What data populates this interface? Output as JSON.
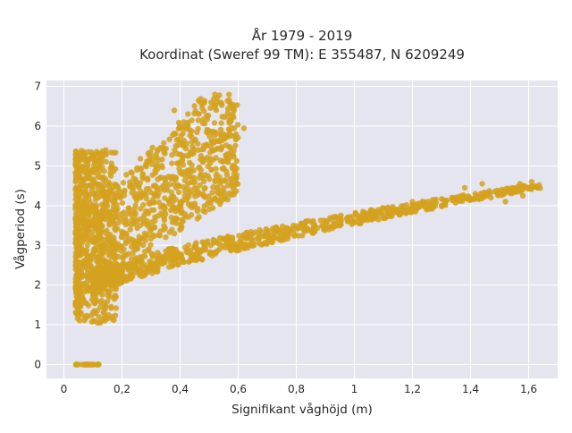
{
  "chart_data": {
    "type": "scatter",
    "title_lines": [
      "År 1979 - 2019",
      "Koordinat (Sweref 99 TM): E 355487, N 6209249"
    ],
    "xlabel": "Signifikant våghöjd (m)",
    "ylabel": "Vågperiod (s)",
    "xlim": [
      -0.06,
      1.7
    ],
    "ylim": [
      -0.35,
      7.15
    ],
    "xticks": [
      0,
      0.2,
      0.4,
      0.6,
      0.8,
      1,
      1.2,
      1.4,
      1.6
    ],
    "xtick_labels": [
      "0",
      "0,2",
      "0,4",
      "0,6",
      "0,8",
      "1",
      "1,2",
      "1,4",
      "1,6"
    ],
    "yticks": [
      0,
      1,
      2,
      3,
      4,
      5,
      6,
      7
    ],
    "ytick_labels": [
      "0",
      "1",
      "2",
      "3",
      "4",
      "5",
      "6",
      "7"
    ],
    "grid": true,
    "marker_color": "#d4a21f",
    "background_color": "#e5e5ef",
    "clusters": [
      {
        "shape": "zero-period",
        "x_range": [
          0.04,
          0.12
        ],
        "y": 0.0
      },
      {
        "shape": "low-height-column",
        "x_range": [
          0.04,
          0.18
        ],
        "y_range": [
          1.05,
          5.4
        ]
      },
      {
        "shape": "swell-band",
        "x_range": [
          0.1,
          0.6
        ],
        "y_lower": [
          2.0,
          4.3
        ],
        "y_upper": [
          4.0,
          6.8
        ]
      },
      {
        "shape": "wind-sea-curve",
        "x_range": [
          0.1,
          1.64
        ],
        "y_at_start": 2.0,
        "y_at_end": 4.5
      }
    ],
    "sample_points": [
      {
        "x": 0.52,
        "y": 6.8
      },
      {
        "x": 0.38,
        "y": 6.4
      },
      {
        "x": 0.62,
        "y": 5.95
      },
      {
        "x": 1.2,
        "y": 4.1
      },
      {
        "x": 1.3,
        "y": 4.0
      },
      {
        "x": 1.38,
        "y": 4.45
      },
      {
        "x": 1.44,
        "y": 4.55
      },
      {
        "x": 1.47,
        "y": 4.2
      },
      {
        "x": 1.52,
        "y": 4.1
      },
      {
        "x": 1.57,
        "y": 4.55
      },
      {
        "x": 1.61,
        "y": 4.6
      },
      {
        "x": 1.63,
        "y": 4.45
      },
      {
        "x": 1.58,
        "y": 4.25
      },
      {
        "x": 0.12,
        "y": 0.0
      }
    ]
  }
}
